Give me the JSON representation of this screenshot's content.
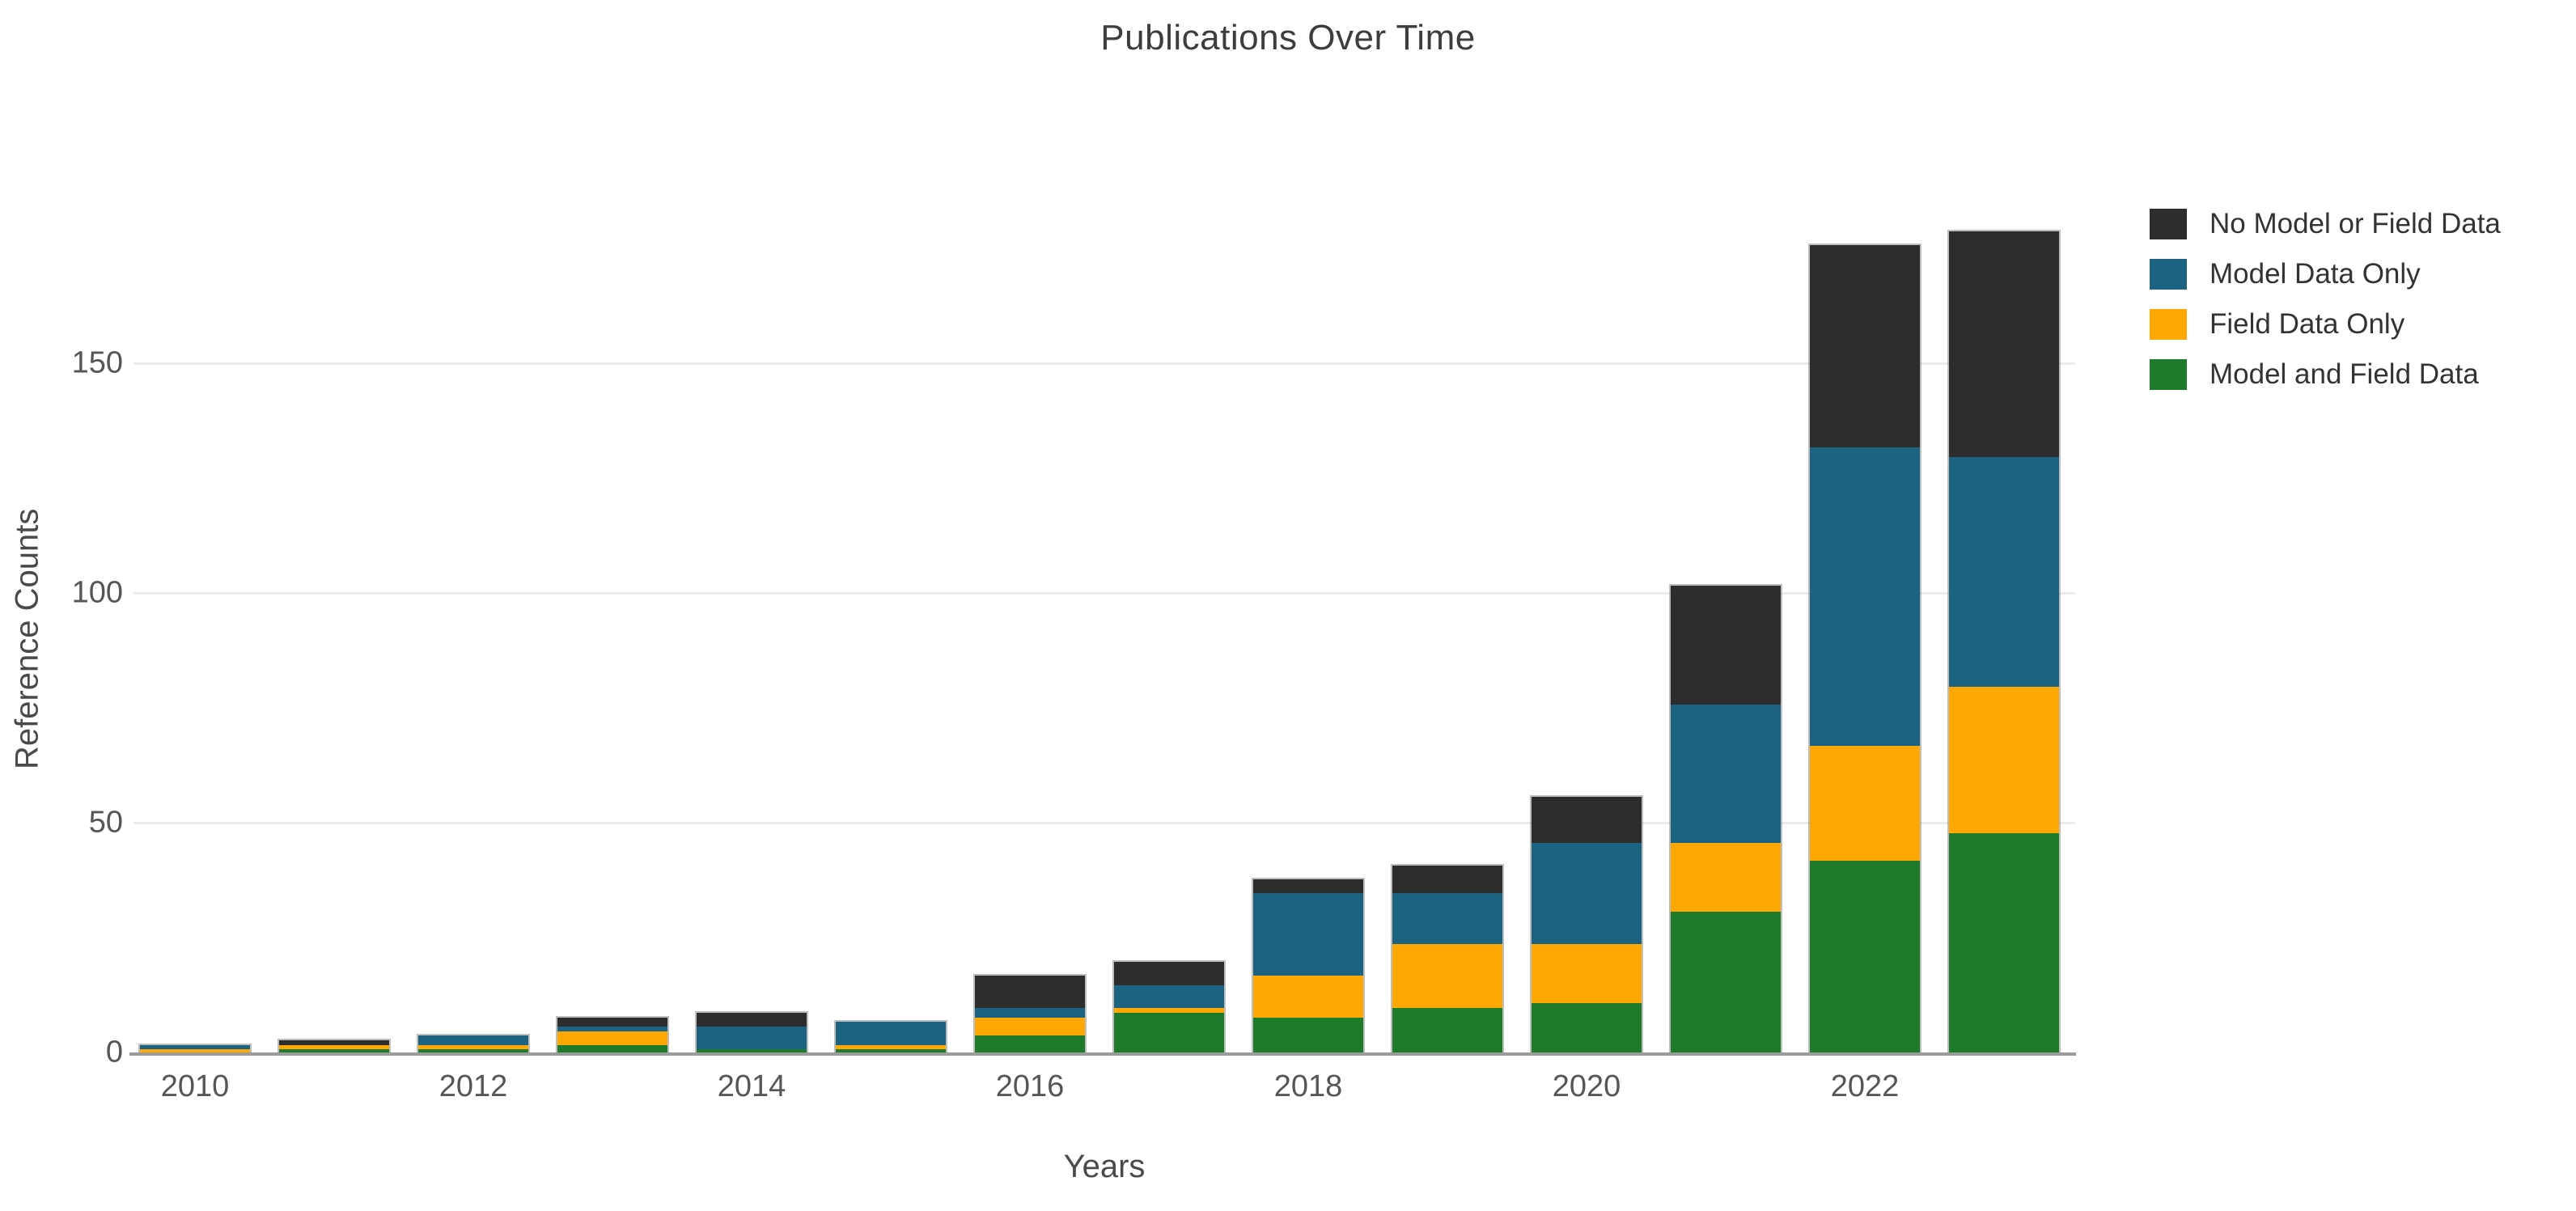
{
  "title": "Publications Over Time",
  "axes": {
    "x_label": "Years",
    "y_label": "Reference Counts"
  },
  "legend": {
    "position": "top-right",
    "items": [
      {
        "label": "No Model or Field Data",
        "color": "#2d2d2d"
      },
      {
        "label": "Model Data Only",
        "color": "#1b6380"
      },
      {
        "label": "Field Data Only",
        "color": "#ffa702"
      },
      {
        "label": "Model and Field Data",
        "color": "#1f7b2c"
      }
    ]
  },
  "chart_data": {
    "type": "bar",
    "stacked": true,
    "title": "Publications Over Time",
    "xlabel": "Years",
    "ylabel": "Reference Counts",
    "categories": [
      2010,
      2011,
      2012,
      2013,
      2014,
      2015,
      2016,
      2017,
      2018,
      2019,
      2020,
      2021,
      2022,
      2023
    ],
    "series": [
      {
        "name": "Model and Field Data",
        "color": "#1f7b2c",
        "values": [
          0,
          1,
          1,
          2,
          1,
          1,
          4,
          9,
          8,
          10,
          11,
          31,
          42,
          48
        ]
      },
      {
        "name": "Field Data Only",
        "color": "#ffa702",
        "values": [
          1,
          1,
          1,
          3,
          0,
          1,
          4,
          1,
          9,
          14,
          13,
          15,
          25,
          32
        ]
      },
      {
        "name": "Model Data Only",
        "color": "#1b6380",
        "values": [
          1,
          0,
          2,
          1,
          5,
          5,
          2,
          5,
          18,
          11,
          22,
          30,
          65,
          50
        ]
      },
      {
        "name": "No Model or Field Data",
        "color": "#2d2d2d",
        "values": [
          0,
          1,
          0,
          2,
          3,
          0,
          7,
          5,
          3,
          6,
          10,
          26,
          44,
          49
        ]
      }
    ],
    "totals": [
      2,
      3,
      4,
      8,
      9,
      7,
      17,
      20,
      38,
      41,
      56,
      102,
      176,
      179
    ],
    "yticks": [
      0,
      50,
      100,
      150
    ],
    "xticks": [
      2010,
      2012,
      2014,
      2016,
      2018,
      2020,
      2022
    ],
    "ylim": [
      0,
      187
    ],
    "grid": true,
    "legend_position": "top-right"
  }
}
